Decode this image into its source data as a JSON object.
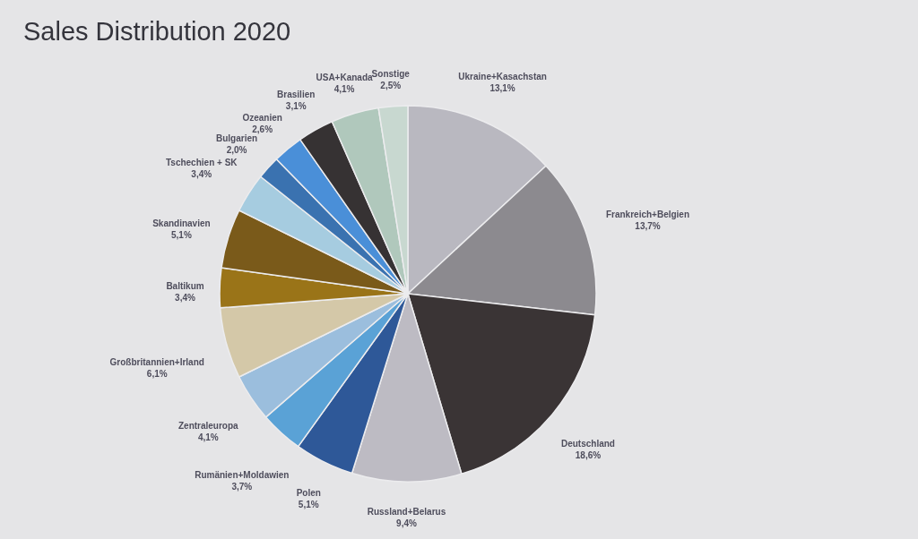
{
  "chart_data": {
    "type": "pie",
    "title": "Sales Distribution 2020",
    "categories": [
      "Ukraine+Kasachstan",
      "Frankreich+Belgien",
      "Deutschland",
      "Russland+Belarus",
      "Polen",
      "Rumänien+Moldawien",
      "Zentraleuropa",
      "Großbritannien+Irland",
      "Baltikum",
      "Skandinavien",
      "Tschechien + SK",
      "Bulgarien",
      "Ozeanien",
      "Brasilien",
      "USA+Kanada",
      "Sonstige"
    ],
    "values": [
      13.1,
      13.7,
      18.6,
      9.4,
      5.1,
      3.7,
      4.1,
      6.1,
      3.4,
      5.1,
      3.4,
      2.0,
      2.6,
      3.1,
      4.1,
      2.5
    ],
    "value_labels": [
      "13,1%",
      "13,7%",
      "18,6%",
      "9,4%",
      "5,1%",
      "3,7%",
      "4,1%",
      "6,1%",
      "3,4%",
      "5,1%",
      "3,4%",
      "2,0%",
      "2,6%",
      "3,1%",
      "4,1%",
      "2,5%"
    ],
    "colors": [
      "#b9b8c0",
      "#8c8a8f",
      "#3a3435",
      "#bdbbc3",
      "#2e5898",
      "#5aa2d6",
      "#9bbedd",
      "#d4c8a8",
      "#9a7418",
      "#7a5a1a",
      "#a6cce0",
      "#3a72b0",
      "#4a8fd8",
      "#363233",
      "#b0c8bc",
      "#c8d8d0"
    ]
  }
}
